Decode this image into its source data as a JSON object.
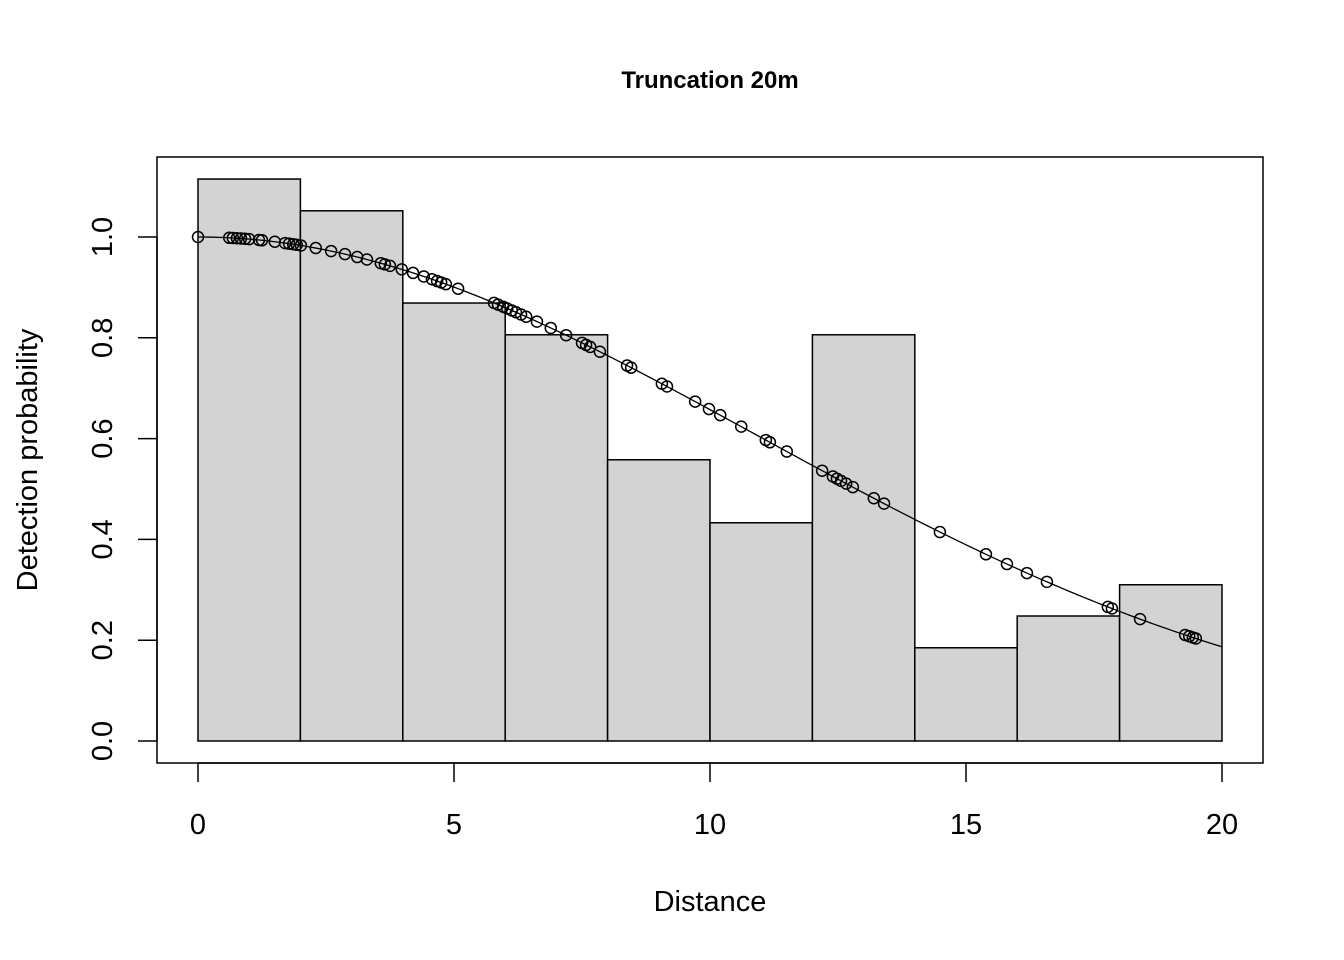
{
  "chart_data": {
    "type": "bar",
    "title": "Truncation 20m",
    "xlabel": "Distance",
    "ylabel": "Detection probability",
    "xlim": [
      0,
      20
    ],
    "ylim": [
      0,
      1.1
    ],
    "x_ticks": [
      "0",
      "5",
      "10",
      "15",
      "20"
    ],
    "y_ticks": [
      "0.0",
      "0.2",
      "0.4",
      "0.6",
      "0.8",
      "1.0"
    ],
    "grid": false,
    "bins": [
      {
        "from": 0,
        "to": 2,
        "value": 1.115
      },
      {
        "from": 2,
        "to": 4,
        "value": 1.052
      },
      {
        "from": 4,
        "to": 6,
        "value": 0.869
      },
      {
        "from": 6,
        "to": 8,
        "value": 0.806
      },
      {
        "from": 8,
        "to": 10,
        "value": 0.558
      },
      {
        "from": 10,
        "to": 12,
        "value": 0.433
      },
      {
        "from": 12,
        "to": 14,
        "value": 0.806
      },
      {
        "from": 14,
        "to": 16,
        "value": 0.185
      },
      {
        "from": 16,
        "to": 18,
        "value": 0.248
      },
      {
        "from": 18,
        "to": 20,
        "value": 0.31
      }
    ],
    "fitted_curve": {
      "model": "half-normal",
      "sigma": 10.92
    },
    "observed_distances": [
      0,
      0.61,
      0.68,
      0.76,
      0.84,
      0.92,
      1.0,
      1.19,
      1.25,
      1.5,
      1.7,
      1.78,
      1.86,
      1.93,
      2.01,
      2.3,
      2.6,
      2.87,
      3.11,
      3.3,
      3.57,
      3.65,
      3.75,
      3.98,
      4.2,
      4.41,
      4.57,
      4.67,
      4.75,
      4.84,
      5.08,
      5.78,
      5.86,
      5.96,
      6.04,
      6.13,
      6.21,
      6.31,
      6.41,
      6.62,
      6.89,
      7.19,
      7.5,
      7.58,
      7.66,
      7.85,
      8.38,
      8.46,
      9.06,
      9.16,
      9.71,
      9.98,
      10.2,
      10.61,
      11.09,
      11.17,
      11.5,
      12.19,
      12.4,
      12.48,
      12.56,
      12.66,
      12.79,
      13.2,
      13.4,
      14.49,
      15.39,
      15.8,
      16.19,
      16.58,
      17.77,
      17.85,
      18.4,
      19.28,
      19.36,
      19.43,
      19.49
    ],
    "bar_color": "#d3d3d3"
  }
}
